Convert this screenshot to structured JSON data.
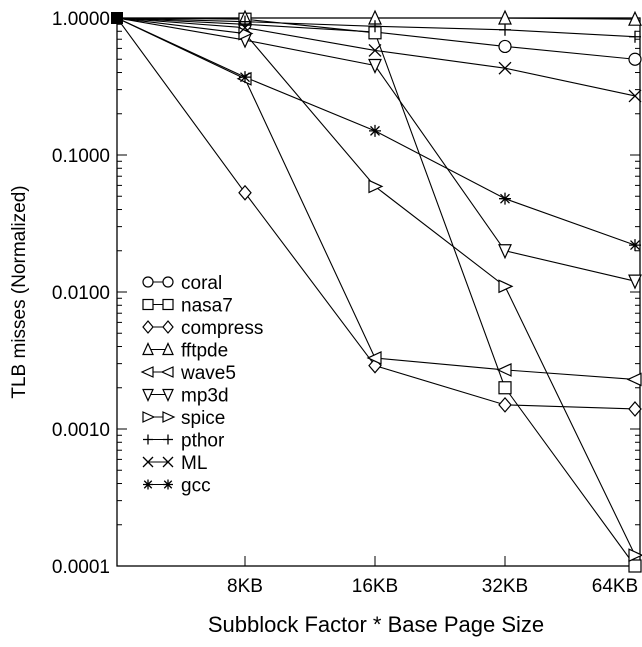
{
  "chart_data": {
    "type": "line",
    "title": "",
    "xlabel": "Subblock Factor * Base Page Size",
    "ylabel": "TLB misses (Normalized)",
    "categories": [
      "",
      "8KB",
      "16KB",
      "32KB",
      "64KB"
    ],
    "y_scale": "log",
    "ylim": [
      0.0001,
      1.0
    ],
    "y_ticks": [
      "1.0000",
      "0.1000",
      "0.0100",
      "0.0010",
      "0.0001"
    ],
    "y_tick_values": [
      1.0,
      0.1,
      0.01,
      0.001,
      0.0001
    ],
    "grid": false,
    "legend_position": "lower-left",
    "series": [
      {
        "name": "coral",
        "marker": "circle",
        "values": [
          1.0,
          0.9,
          0.79,
          0.62,
          0.5
        ]
      },
      {
        "name": "nasa7",
        "marker": "square",
        "values": [
          1.0,
          0.98,
          0.78,
          0.002,
          0.0001
        ]
      },
      {
        "name": "compress",
        "marker": "diamond",
        "values": [
          1.0,
          0.053,
          0.0029,
          0.0015,
          0.0014
        ]
      },
      {
        "name": "fftpde",
        "marker": "triangle-up",
        "values": [
          1.0,
          1.0,
          1.0,
          1.0,
          0.98
        ]
      },
      {
        "name": "wave5",
        "marker": "triangle-left",
        "values": [
          1.0,
          0.36,
          0.0033,
          0.0027,
          0.0023
        ]
      },
      {
        "name": "mp3d",
        "marker": "triangle-down",
        "values": [
          1.0,
          0.69,
          0.45,
          0.02,
          0.012
        ]
      },
      {
        "name": "spice",
        "marker": "triangle-right",
        "values": [
          1.0,
          0.77,
          0.059,
          0.011,
          0.00012
        ]
      },
      {
        "name": "pthor",
        "marker": "plus",
        "values": [
          1.0,
          0.94,
          0.87,
          0.82,
          0.73
        ]
      },
      {
        "name": "ML",
        "marker": "x",
        "values": [
          1.0,
          0.85,
          0.58,
          0.43,
          0.27
        ]
      },
      {
        "name": "gcc",
        "marker": "star",
        "values": [
          1.0,
          0.37,
          0.15,
          0.048,
          0.022
        ]
      }
    ]
  }
}
